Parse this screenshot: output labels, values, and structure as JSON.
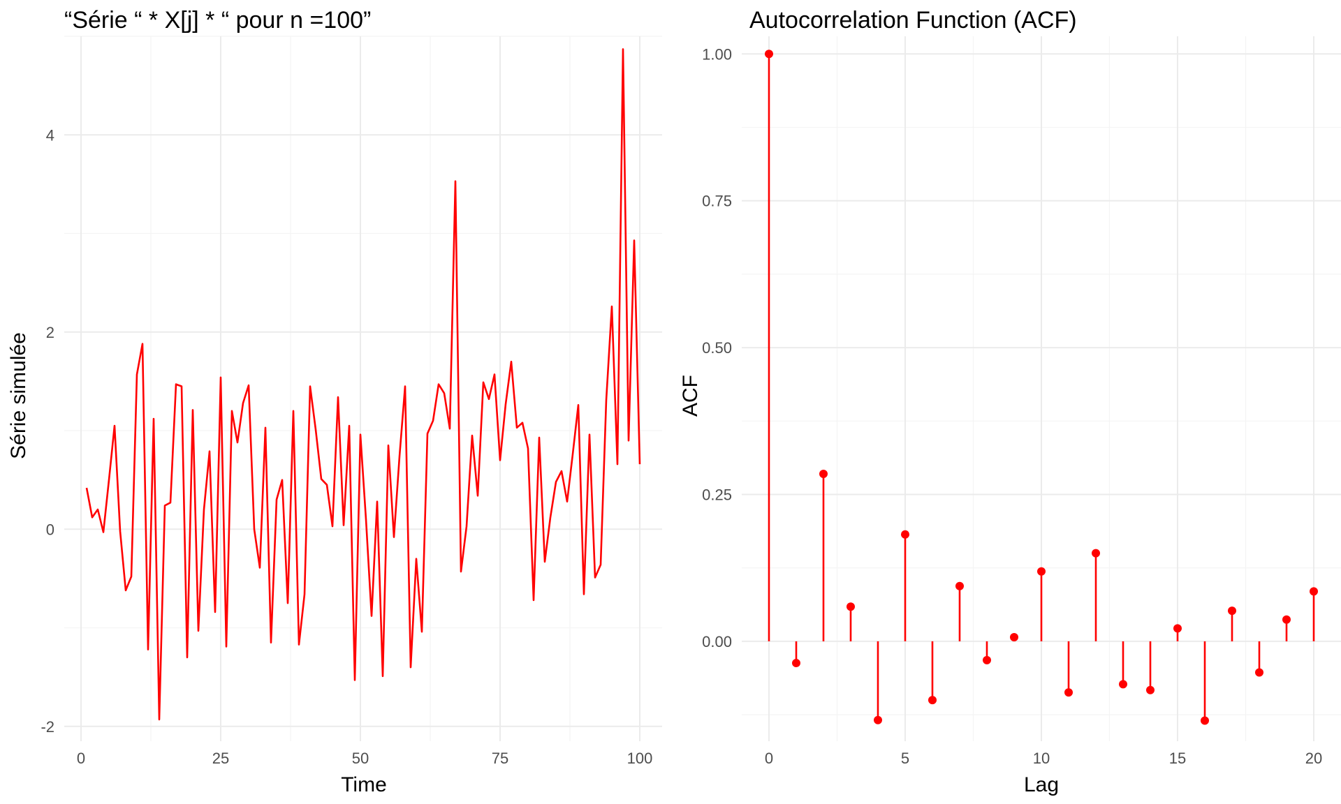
{
  "chart_data": [
    {
      "type": "line",
      "title": "“Série “ * X[j] * “ pour n =100”",
      "xlabel": "Time",
      "ylabel": "Série simulée",
      "xlim": [
        -3,
        104
      ],
      "ylim": [
        -2.15,
        5.0
      ],
      "x_ticks": [
        0,
        25,
        50,
        75,
        100
      ],
      "x_tick_labels": [
        "0",
        "25",
        "50",
        "75",
        "100"
      ],
      "y_ticks": [
        -2,
        0,
        2,
        4
      ],
      "y_tick_labels": [
        "-2",
        "0",
        "2",
        "4"
      ],
      "grid": true,
      "color": "#ff0000",
      "x": [
        1,
        2,
        3,
        4,
        5,
        6,
        7,
        8,
        9,
        10,
        11,
        12,
        13,
        14,
        15,
        16,
        17,
        18,
        19,
        20,
        21,
        22,
        23,
        24,
        25,
        26,
        27,
        28,
        29,
        30,
        31,
        32,
        33,
        34,
        35,
        36,
        37,
        38,
        39,
        40,
        41,
        42,
        43,
        44,
        45,
        46,
        47,
        48,
        49,
        50,
        51,
        52,
        53,
        54,
        55,
        56,
        57,
        58,
        59,
        60,
        61,
        62,
        63,
        64,
        65,
        66,
        67,
        68,
        69,
        70,
        71,
        72,
        73,
        74,
        75,
        76,
        77,
        78,
        79,
        80,
        81,
        82,
        83,
        84,
        85,
        86,
        87,
        88,
        89,
        90,
        91,
        92,
        93,
        94,
        95,
        96,
        97,
        98,
        99,
        100
      ],
      "values": [
        0.42,
        0.12,
        0.2,
        -0.03,
        0.5,
        1.05,
        -0.02,
        -0.62,
        -0.48,
        1.57,
        1.88,
        -1.22,
        1.12,
        -1.93,
        0.24,
        0.27,
        1.47,
        1.45,
        -1.3,
        1.21,
        -1.03,
        0.2,
        0.79,
        -0.84,
        1.54,
        -1.19,
        1.2,
        0.88,
        1.28,
        1.46,
        0.0,
        -0.39,
        1.03,
        -1.15,
        0.3,
        0.5,
        -0.75,
        1.2,
        -1.17,
        -0.66,
        1.45,
        1.01,
        0.51,
        0.45,
        0.03,
        1.34,
        0.04,
        1.05,
        -1.53,
        0.96,
        0.1,
        -0.88,
        0.28,
        -1.49,
        0.85,
        -0.08,
        0.74,
        1.45,
        -1.4,
        -0.3,
        -1.04,
        0.97,
        1.1,
        1.47,
        1.38,
        1.02,
        3.53,
        -0.43,
        0.03,
        0.95,
        0.34,
        1.49,
        1.32,
        1.57,
        0.7,
        1.27,
        1.7,
        1.03,
        1.08,
        0.82,
        -0.72,
        0.93,
        -0.33,
        0.12,
        0.48,
        0.59,
        0.28,
        0.76,
        1.26,
        -0.66,
        0.96,
        -0.49,
        -0.36,
        1.31,
        2.26,
        0.66,
        4.87,
        0.9,
        2.93,
        0.66
      ]
    },
    {
      "type": "stem",
      "title": "Autocorrelation Function (ACF)",
      "xlabel": "Lag",
      "ylabel": "ACF",
      "xlim": [
        -1,
        21
      ],
      "ylim": [
        -0.17,
        1.03
      ],
      "x_ticks": [
        0,
        5,
        10,
        15,
        20
      ],
      "x_tick_labels": [
        "0",
        "5",
        "10",
        "15",
        "20"
      ],
      "y_ticks": [
        0,
        0.25,
        0.5,
        0.75,
        1
      ],
      "y_tick_labels": [
        "0.00",
        "0.25",
        "0.50",
        "0.75",
        "1.00"
      ],
      "grid": true,
      "color": "#ff0000",
      "x": [
        0,
        1,
        2,
        3,
        4,
        5,
        6,
        7,
        8,
        9,
        10,
        11,
        12,
        13,
        14,
        15,
        16,
        17,
        18,
        19,
        20
      ],
      "values": [
        1.0,
        -0.037,
        0.285,
        0.059,
        -0.134,
        0.182,
        -0.1,
        0.094,
        -0.032,
        0.007,
        0.119,
        -0.087,
        0.15,
        -0.073,
        -0.083,
        0.022,
        -0.135,
        0.052,
        -0.053,
        0.037,
        0.085
      ]
    }
  ]
}
